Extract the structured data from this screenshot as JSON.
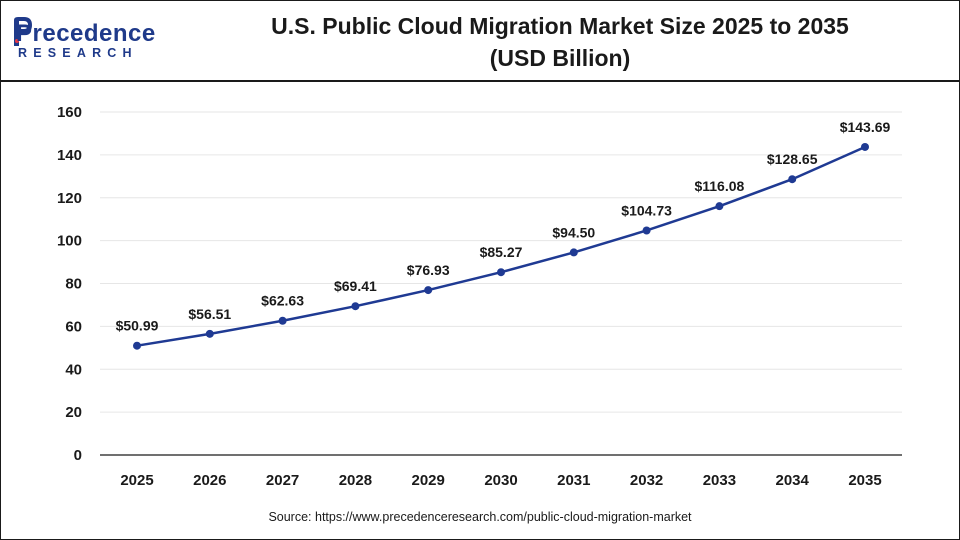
{
  "header": {
    "title": "U.S. Public Cloud Migration Market Size 2025 to 2035",
    "subtitle": "(USD Billion)",
    "logo_word": "Precedence",
    "logo_sub": "RESEARCH"
  },
  "footer": {
    "source": "Source: https://www.precedenceresearch.com/public-cloud-migration-market"
  },
  "colors": {
    "line": "#1f3a93",
    "grid": "#e6e6e6",
    "axis": "#1a1a1a",
    "brand": "#1f3a8a"
  },
  "chart_data": {
    "type": "line",
    "title": "U.S. Public Cloud Migration Market Size 2025 to 2035 (USD Billion)",
    "xlabel": "",
    "ylabel": "",
    "categories": [
      "2025",
      "2026",
      "2027",
      "2028",
      "2029",
      "2030",
      "2031",
      "2032",
      "2033",
      "2034",
      "2035"
    ],
    "series": [
      {
        "values": [
          50.99,
          56.51,
          62.63,
          69.41,
          76.93,
          85.27,
          94.5,
          104.73,
          116.08,
          128.65,
          143.69
        ],
        "labels": [
          "$50.99",
          "$56.51",
          "$62.63",
          "$69.41",
          "$76.93",
          "$85.27",
          "$94.50",
          "$104.73",
          "$116.08",
          "$128.65",
          "$143.69"
        ]
      }
    ],
    "ylim": [
      0,
      160
    ],
    "yticks": [
      0,
      20,
      40,
      60,
      80,
      100,
      120,
      140,
      160
    ],
    "grid": true,
    "legend": "none"
  }
}
